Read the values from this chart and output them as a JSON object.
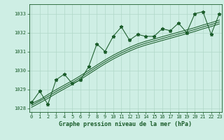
{
  "xlabel": "Graphe pression niveau de la mer (hPa)",
  "background_color": "#ceeee4",
  "grid_color": "#b0d8c8",
  "line_color": "#1a5c2a",
  "x_values": [
    0,
    1,
    2,
    3,
    4,
    5,
    6,
    7,
    8,
    9,
    10,
    11,
    12,
    13,
    14,
    15,
    16,
    17,
    18,
    19,
    20,
    21,
    22,
    23
  ],
  "y_main": [
    1028.3,
    1028.9,
    1028.2,
    1029.5,
    1029.8,
    1029.3,
    1029.5,
    1030.2,
    1031.4,
    1031.0,
    1031.8,
    1032.3,
    1031.6,
    1031.9,
    1031.8,
    1031.8,
    1032.2,
    1032.1,
    1032.5,
    1032.0,
    1033.0,
    1033.1,
    1031.9,
    1033.0
  ],
  "y_smooth1": [
    1028.25,
    1028.45,
    1028.72,
    1028.98,
    1029.22,
    1029.46,
    1029.72,
    1030.0,
    1030.28,
    1030.55,
    1030.8,
    1031.02,
    1031.22,
    1031.4,
    1031.54,
    1031.66,
    1031.78,
    1031.9,
    1032.02,
    1032.14,
    1032.26,
    1032.4,
    1032.52,
    1032.66
  ],
  "y_smooth2": [
    1028.15,
    1028.38,
    1028.62,
    1028.88,
    1029.12,
    1029.36,
    1029.62,
    1029.9,
    1030.18,
    1030.45,
    1030.7,
    1030.92,
    1031.12,
    1031.3,
    1031.44,
    1031.56,
    1031.68,
    1031.8,
    1031.92,
    1032.04,
    1032.16,
    1032.3,
    1032.42,
    1032.56
  ],
  "y_smooth3": [
    1028.05,
    1028.28,
    1028.52,
    1028.78,
    1029.02,
    1029.26,
    1029.52,
    1029.8,
    1030.08,
    1030.35,
    1030.6,
    1030.82,
    1031.02,
    1031.2,
    1031.34,
    1031.46,
    1031.58,
    1031.7,
    1031.82,
    1031.94,
    1032.06,
    1032.2,
    1032.32,
    1032.46
  ],
  "ylim_min": 1027.8,
  "ylim_max": 1033.5,
  "yticks": [
    1028,
    1029,
    1030,
    1031,
    1032,
    1033
  ],
  "xlim_min": -0.3,
  "xlim_max": 23.3,
  "marker": "*",
  "marker_size": 3.5,
  "linewidth": 0.75,
  "tick_fontsize": 5.0,
  "xlabel_fontsize": 6.0
}
